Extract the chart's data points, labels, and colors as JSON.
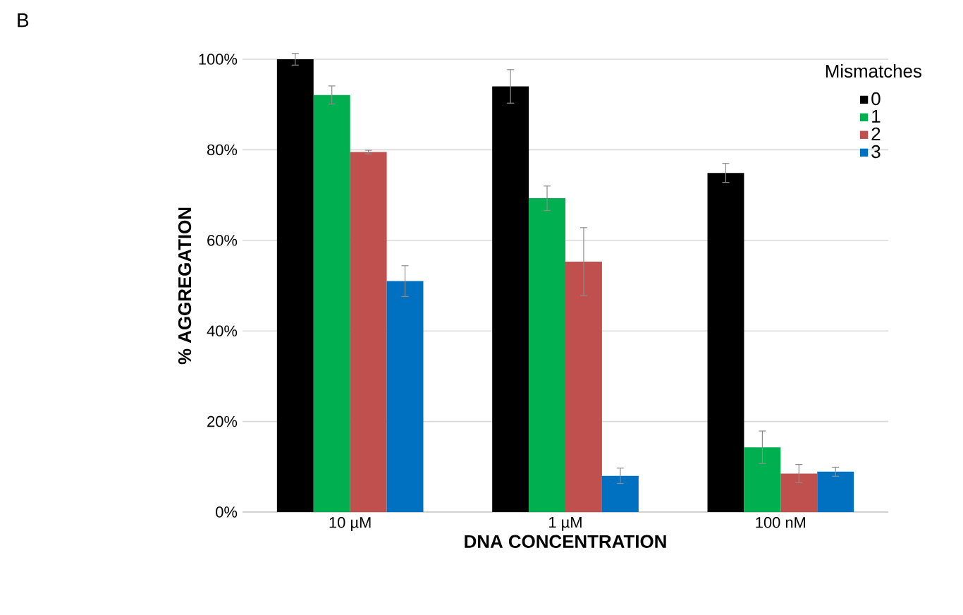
{
  "chart_data": {
    "type": "bar",
    "xlabel": "DNA CONCENTRATION",
    "ylabel": "% AGGREGATION",
    "legend_title": "Mismatches",
    "categories": [
      "10 µM",
      "1 µM",
      "100 nM"
    ],
    "series": [
      {
        "name": "0",
        "color": "#000000",
        "values": [
          100,
          94,
          74.9
        ],
        "errors": [
          1.3,
          3.7,
          2.1
        ]
      },
      {
        "name": "1",
        "color": "#00b050",
        "values": [
          92.1,
          69.3,
          14.3
        ],
        "errors": [
          2,
          2.7,
          3.6
        ]
      },
      {
        "name": "2",
        "color": "#c0504d",
        "values": [
          79.5,
          55.3,
          8.5
        ],
        "errors": [
          0.4,
          7.5,
          2
        ]
      },
      {
        "name": "3",
        "color": "#0070c0",
        "values": [
          51,
          8,
          8.9
        ],
        "errors": [
          3.4,
          1.7,
          1
        ]
      }
    ],
    "ylim": [
      0,
      100
    ],
    "yticks": [
      {
        "value": 0,
        "label": "0%"
      },
      {
        "value": 20,
        "label": "20%"
      },
      {
        "value": 40,
        "label": "40%"
      },
      {
        "value": 60,
        "label": "60%"
      },
      {
        "value": 80,
        "label": "80%"
      },
      {
        "value": 100,
        "label": "100%"
      }
    ],
    "grid": "y",
    "legend": "top right",
    "annotations": [
      "B"
    ]
  }
}
